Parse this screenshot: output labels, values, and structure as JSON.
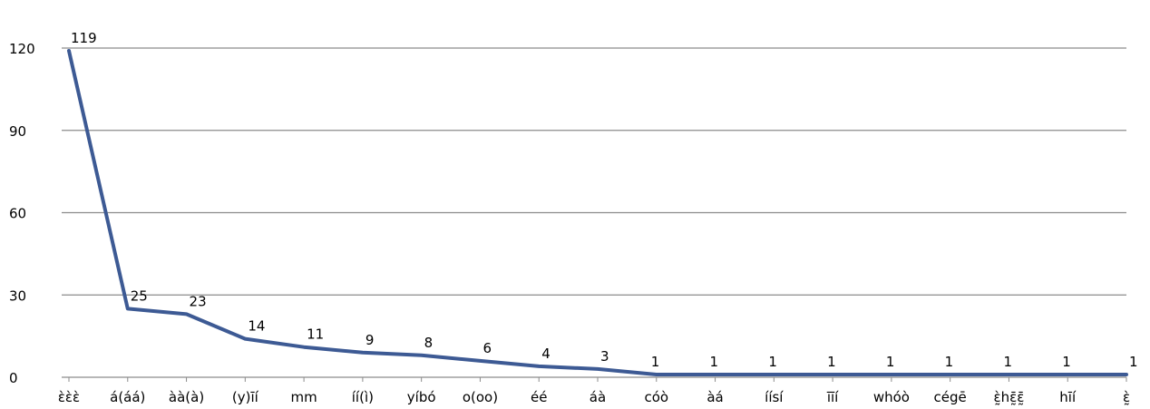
{
  "chart_data": {
    "type": "line",
    "title": "",
    "xlabel": "",
    "ylabel": "",
    "ylim": [
      0,
      120
    ],
    "yticks": [
      0,
      30,
      60,
      90,
      120
    ],
    "grid": true,
    "categories": [
      "ὲὲὲ",
      "á(áá)",
      "àà(à)",
      "(y)ı̄í",
      "mm",
      "íí(ì)",
      "yíbó",
      "o(oo)",
      "éé",
      "áà",
      "cóò",
      "àá",
      "íísí",
      "ı̄ı̄í",
      "whóò",
      "cégē",
      "ὲ̰hε̰̄ε̰̄",
      "hı̄í",
      "ὲ̰"
    ],
    "values": [
      119,
      25,
      23,
      14,
      11,
      9,
      8,
      6,
      4,
      3,
      1,
      1,
      1,
      1,
      1,
      1,
      1,
      1,
      1
    ],
    "line_color": "#3d5a94"
  }
}
